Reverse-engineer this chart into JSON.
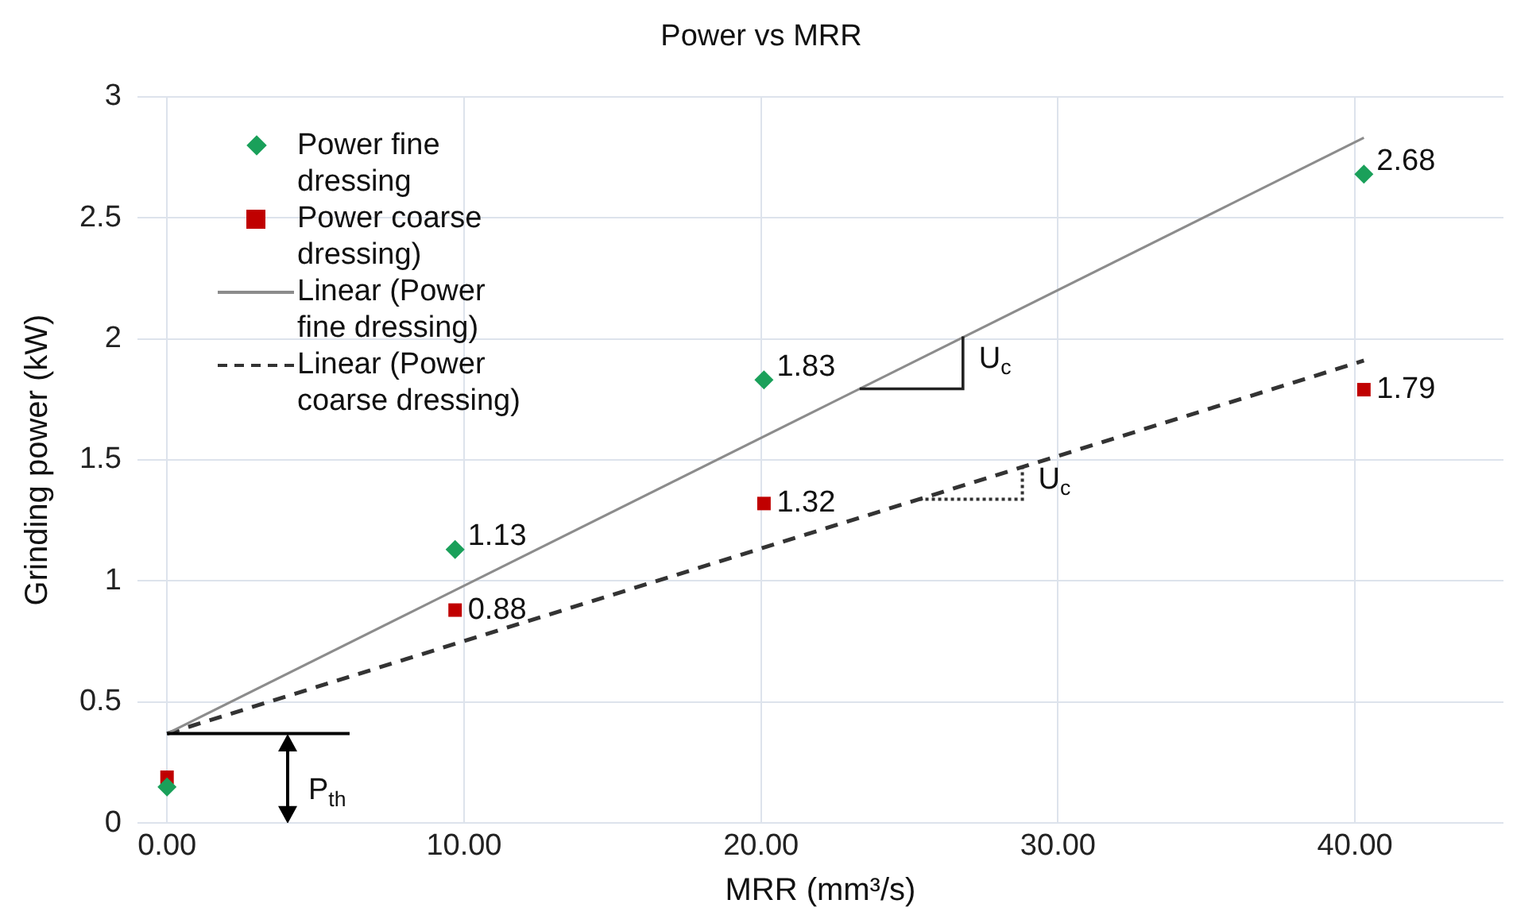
{
  "chart_data": {
    "type": "scatter",
    "title": "Power vs MRR",
    "xlabel": "MRR (mm³/s)",
    "ylabel": "Grinding power (kW)",
    "xlim": [
      -1,
      45
    ],
    "xticks": [
      {
        "value": 0,
        "label": "0.00"
      },
      {
        "value": 10,
        "label": "10.00"
      },
      {
        "value": 20,
        "label": "20.00"
      },
      {
        "value": 30,
        "label": "30.00"
      },
      {
        "value": 40,
        "label": "40.00"
      }
    ],
    "ylim": [
      0,
      3
    ],
    "yticks": [
      0,
      0.5,
      1,
      1.5,
      2,
      2.5,
      3
    ],
    "grid": true,
    "legend": "top left",
    "series": [
      {
        "name": "Power fine dressing",
        "marker": "diamond",
        "color": "#1aa05a",
        "x": [
          0,
          9.7,
          20.1,
          40.3
        ],
        "values": [
          0.15,
          1.13,
          1.83,
          2.68
        ],
        "value_labels": [
          null,
          "1.13",
          "1.83",
          "2.68"
        ]
      },
      {
        "name": "Power coarse dressing)",
        "marker": "square",
        "color": "#c00000",
        "x": [
          0,
          9.7,
          20.1,
          40.3
        ],
        "values": [
          0.19,
          0.88,
          1.32,
          1.79
        ],
        "value_labels": [
          null,
          "0.88",
          "1.32",
          "1.79"
        ]
      },
      {
        "name": "Linear (Power fine dressing)",
        "type": "line",
        "marker": "none",
        "line_style": "solid",
        "color": "#8c8c8c",
        "x": [
          0,
          40.3
        ],
        "values": [
          0.37,
          2.83
        ]
      },
      {
        "name": "Linear (Power coarse dressing)",
        "type": "line",
        "marker": "none",
        "line_style": "dashed",
        "color": "#333333",
        "x": [
          0,
          40.3
        ],
        "values": [
          0.37,
          1.91
        ]
      }
    ],
    "ref_lines": [
      {
        "axis": "y",
        "value": 0.37,
        "label": "P$_{th}$",
        "color": "#000000"
      }
    ],
    "annotations": [
      {
        "text": "U$_{c}$",
        "x": 26.8,
        "y": 2.01
      },
      {
        "text": "U$_{c}$",
        "x": 28.8,
        "y": 1.47
      }
    ]
  }
}
